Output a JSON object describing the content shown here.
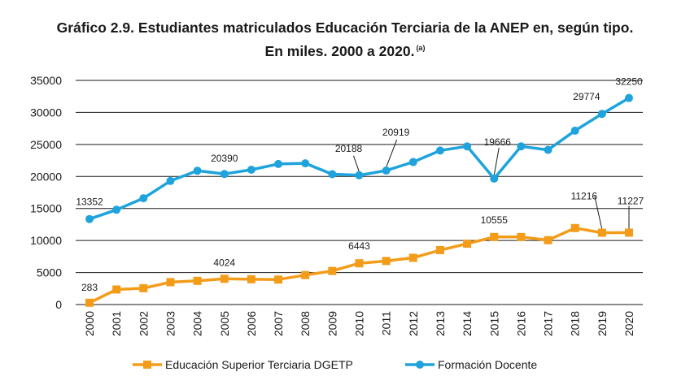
{
  "title_line1": "Gráfico 2.9. Estudiantes matriculados Educación Terciaria de la ANEP en, según tipo.",
  "title_line2": "En miles. 2000 a 2020.",
  "title_note": "(a)",
  "colors": {
    "orange": "#f39c1a",
    "blue": "#1ea3dc",
    "grid": "#1a1a1a"
  },
  "chart_data": {
    "type": "line",
    "categories": [
      "2000",
      "2001",
      "2002",
      "2003",
      "2004",
      "2005",
      "2006",
      "2007",
      "2008",
      "2009",
      "2010",
      "2011",
      "2012",
      "2013",
      "2014",
      "2015",
      "2016",
      "2017",
      "2018",
      "2019",
      "2020"
    ],
    "ylim": [
      0,
      35000
    ],
    "yticks": [
      0,
      5000,
      10000,
      15000,
      20000,
      25000,
      30000,
      35000
    ],
    "legend_position": "bottom",
    "series": [
      {
        "name": "Educación Superior Terciaria DGETP",
        "color": "#f39c1a",
        "marker": "square",
        "values": [
          283,
          2350,
          2550,
          3500,
          3700,
          4024,
          3950,
          3900,
          4600,
          5250,
          6443,
          6800,
          7300,
          8500,
          9500,
          10555,
          10550,
          10050,
          11950,
          11216,
          11227
        ]
      },
      {
        "name": "Formación Docente",
        "color": "#1ea3dc",
        "marker": "circle",
        "values": [
          13352,
          14800,
          16600,
          19300,
          20900,
          20390,
          21050,
          21950,
          22050,
          20350,
          20188,
          20919,
          22250,
          24050,
          24700,
          19666,
          24700,
          24150,
          27150,
          29774,
          32250
        ]
      }
    ],
    "annotations": [
      {
        "series": 0,
        "index": 0,
        "text": "283",
        "callout": false
      },
      {
        "series": 0,
        "index": 5,
        "text": "4024",
        "callout": false
      },
      {
        "series": 0,
        "index": 10,
        "text": "6443",
        "callout": false
      },
      {
        "series": 0,
        "index": 15,
        "text": "10555",
        "callout": false
      },
      {
        "series": 0,
        "index": 19,
        "text": "11216",
        "callout": true
      },
      {
        "series": 0,
        "index": 20,
        "text": "11227",
        "callout": true
      },
      {
        "series": 1,
        "index": 0,
        "text": "13352",
        "callout": false
      },
      {
        "series": 1,
        "index": 5,
        "text": "20390",
        "callout": false
      },
      {
        "series": 1,
        "index": 10,
        "text": "20188",
        "callout": true
      },
      {
        "series": 1,
        "index": 11,
        "text": "20919",
        "callout": true
      },
      {
        "series": 1,
        "index": 15,
        "text": "19666",
        "callout": true
      },
      {
        "series": 1,
        "index": 19,
        "text": "29774",
        "callout": false
      },
      {
        "series": 1,
        "index": 20,
        "text": "32250",
        "callout": false
      }
    ]
  }
}
